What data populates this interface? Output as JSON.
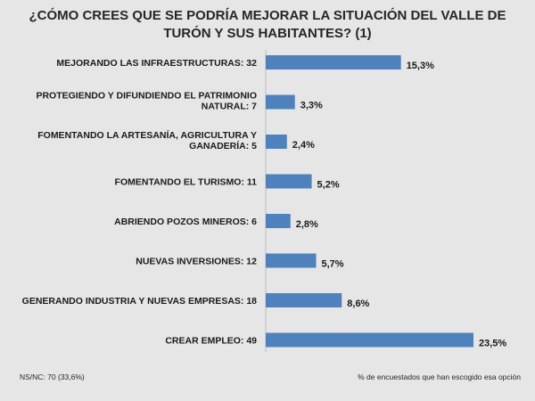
{
  "chart_data": {
    "type": "bar",
    "orientation": "horizontal",
    "title": "¿CÓMO CREES QUE SE PODRÍA MEJORAR LA SITUACIÓN DEL VALLE DE TURÓN Y SUS HABITANTES? (1)",
    "categories": [
      "MEJORANDO LAS INFRAESTRUCTURAS: 32",
      "PROTEGIENDO Y DIFUNDIENDO EL PATRIMONIO NATURAL: 7",
      "FOMENTANDO LA ARTESANÍA, AGRICULTURA Y GANADERÍA: 5",
      "FOMENTANDO EL TURISMO: 11",
      "ABRIENDO POZOS MINEROS: 6",
      "NUEVAS INVERSIONES: 12",
      "GENERANDO INDUSTRIA Y NUEVAS EMPRESAS: 18",
      "CREAR EMPLEO: 49"
    ],
    "category_lines": [
      [
        "MEJORANDO LAS INFRAESTRUCTURAS: 32"
      ],
      [
        "PROTEGIENDO Y DIFUNDIENDO EL PATRIMONIO",
        "NATURAL: 7"
      ],
      [
        "FOMENTANDO LA ARTESANÍA, AGRICULTURA Y",
        "GANADERÍA: 5"
      ],
      [
        "FOMENTANDO EL TURISMO: 11"
      ],
      [
        "ABRIENDO POZOS MINEROS: 6"
      ],
      [
        "NUEVAS INVERSIONES: 12"
      ],
      [
        "GENERANDO INDUSTRIA Y NUEVAS EMPRESAS: 18"
      ],
      [
        "CREAR EMPLEO: 49"
      ]
    ],
    "values": [
      15.3,
      3.3,
      2.4,
      5.2,
      2.8,
      5.7,
      8.6,
      23.5
    ],
    "data_labels": [
      "15,3%",
      "3,3%",
      "2,4%",
      "5,2%",
      "2,8%",
      "5,7%",
      "8,6%",
      "23,5%"
    ],
    "xlim": [
      0,
      23.5
    ],
    "bar_color": "#4f81bd",
    "grid": false,
    "legend": "none"
  },
  "footnotes": {
    "left": "NS/NC: 70 (33,6%)",
    "right": "% de encuestados que han escogido esa opción"
  }
}
